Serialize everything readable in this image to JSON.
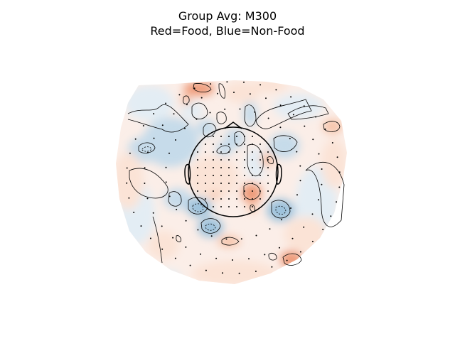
{
  "chart_data": {
    "type": "heatmap",
    "subtype": "topographic-scalp-map",
    "title": "Group Avg: M300",
    "subtitle": "Red=Food, Blue=Non-Food",
    "colormap": {
      "positive_label": "Food",
      "negative_label": "Non-Food",
      "positive_color": "#f4a582",
      "negative_color": "#92c5de",
      "neutral_color": "#f7f7f7"
    },
    "axes_visible": false,
    "grid": false,
    "legend": "none",
    "sensor_count": 160,
    "contour_levels": [
      -1,
      0,
      1
    ],
    "value_range": [
      -1,
      1
    ]
  },
  "colors": {
    "contour": "#000000",
    "sensor": "#000000",
    "head_outline": "#000000",
    "positive_light": "#fbe3d6",
    "positive_mid": "#f6c3a8",
    "positive_strong": "#ee9a78",
    "negative_light": "#e3edf4",
    "negative_mid": "#c6dbea",
    "negative_strong": "#9dc2dc"
  }
}
